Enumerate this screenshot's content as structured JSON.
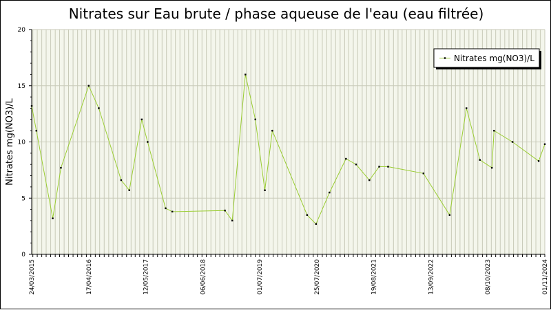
{
  "colors": {
    "plot_background": "#f4f6ec",
    "grid": "#c8cab8",
    "series_line": "#9acd32",
    "marker": "#000000",
    "axis": "#000000"
  },
  "chart_data": {
    "type": "line",
    "title": "Nitrates sur Eau brute / phase aqueuse de l'eau (eau filtrée)",
    "xlabel": "",
    "ylabel": "Nitrates mg(NO3)/L",
    "ylim": [
      0,
      20
    ],
    "yticks": [
      0,
      5,
      10,
      15,
      20
    ],
    "xlim": [
      "2015-03-24",
      "2024-11-01"
    ],
    "xtick_labels": [
      "24/03/2015",
      "17/04/2016",
      "12/05/2017",
      "06/06/2018",
      "01/07/2019",
      "25/07/2020",
      "19/08/2021",
      "13/09/2022",
      "08/10/2023",
      "01/11/2024"
    ],
    "grid": true,
    "legend": "top-right",
    "series": [
      {
        "name": "Nitrates mg(NO3)/L",
        "x": [
          "2015-03-24",
          "2015-04-25",
          "2015-08-15",
          "2015-10-10",
          "2016-04-17",
          "2016-06-25",
          "2016-11-25",
          "2017-01-20",
          "2017-04-15",
          "2017-05-25",
          "2017-09-25",
          "2017-11-10",
          "2018-11-05",
          "2018-12-25",
          "2019-03-25",
          "2019-06-01",
          "2019-08-05",
          "2019-09-25",
          "2020-05-20",
          "2020-07-20",
          "2020-10-20",
          "2021-02-10",
          "2021-04-20",
          "2021-07-20",
          "2021-09-25",
          "2021-11-25",
          "2022-07-25",
          "2023-01-20",
          "2023-05-15",
          "2023-08-15",
          "2023-11-05",
          "2023-11-20",
          "2024-03-25",
          "2024-09-20",
          "2024-11-01"
        ],
        "values": [
          13.2,
          11.0,
          3.2,
          7.7,
          15.0,
          13.0,
          6.6,
          5.7,
          12.0,
          10.0,
          4.1,
          3.8,
          3.9,
          3.0,
          16.0,
          12.0,
          5.7,
          11.0,
          3.5,
          2.7,
          5.5,
          8.5,
          8.0,
          6.6,
          7.8,
          7.8,
          7.2,
          3.5,
          13.0,
          8.4,
          7.7,
          11.0,
          10.0,
          8.3,
          9.8
        ]
      }
    ]
  }
}
